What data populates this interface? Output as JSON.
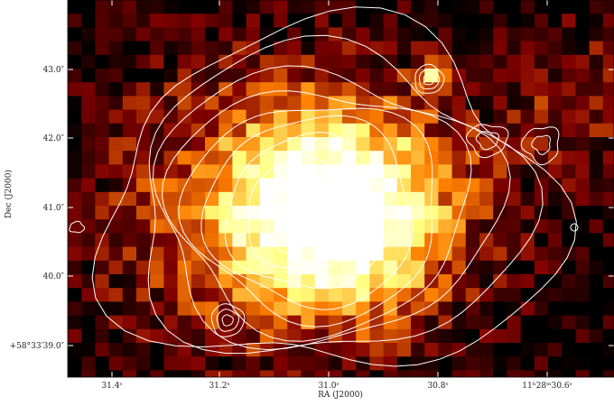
{
  "axes": {
    "xlabel": "RA (J2000)",
    "ylabel": "Dec (J2000)",
    "xticks": [
      "31.4ˢ",
      "31.2ˢ",
      "31.0ˢ",
      "30.8ˢ",
      "11ʰ28ᵐ30.6ˢ"
    ],
    "yticks": [
      "43.0″",
      "42.0″",
      "41.0″",
      "40.0″",
      "+58°33′39.0″"
    ]
  }
}
